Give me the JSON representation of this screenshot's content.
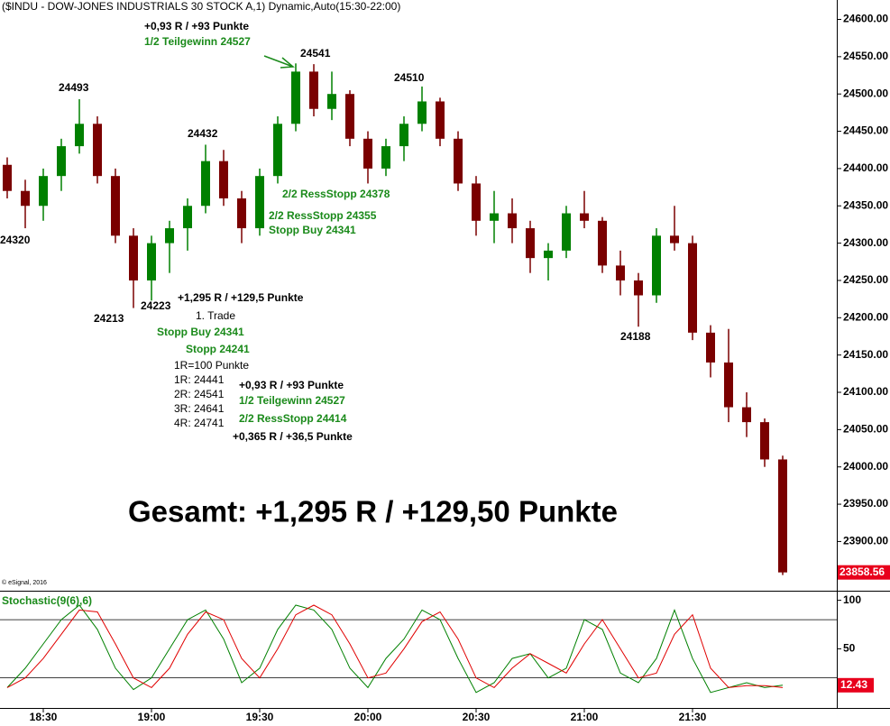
{
  "chart_data": [
    {
      "type": "candlestick",
      "title": "($INDU - DOW-JONES INDUSTRIALS 30 STOCK A,1) Dynamic,Auto(15:30-22:00)",
      "source": "© eSignal, 2016",
      "x": [
        "18:20",
        "18:25",
        "18:30",
        "18:35",
        "18:40",
        "18:45",
        "18:50",
        "18:55",
        "19:00",
        "19:05",
        "19:10",
        "19:15",
        "19:20",
        "19:25",
        "19:30",
        "19:35",
        "19:40",
        "19:45",
        "19:50",
        "19:55",
        "20:00",
        "20:05",
        "20:10",
        "20:15",
        "20:20",
        "20:25",
        "20:30",
        "20:35",
        "20:40",
        "20:45",
        "20:50",
        "20:55",
        "21:00",
        "21:05",
        "21:10",
        "21:15",
        "21:20",
        "21:25",
        "21:30",
        "21:35",
        "21:40",
        "21:45",
        "21:50",
        "21:55"
      ],
      "open": [
        24405,
        24370,
        24350,
        24390,
        24430,
        24460,
        24390,
        24310,
        24250,
        24300,
        24320,
        24350,
        24410,
        24360,
        24320,
        24390,
        24460,
        24530,
        24480,
        24500,
        24440,
        24400,
        24430,
        24460,
        24490,
        24440,
        24380,
        24330,
        24340,
        24320,
        24280,
        24290,
        24340,
        24330,
        24270,
        24250,
        24230,
        24310,
        24300,
        24180,
        24140,
        24080,
        24060,
        24010
      ],
      "high": [
        24415,
        24385,
        24400,
        24440,
        24493,
        24470,
        24400,
        24320,
        24310,
        24330,
        24360,
        24432,
        24425,
        24370,
        24400,
        24470,
        24541,
        24540,
        24530,
        24505,
        24450,
        24440,
        24470,
        24510,
        24495,
        24450,
        24390,
        24370,
        24360,
        24330,
        24300,
        24350,
        24370,
        24335,
        24290,
        24260,
        24320,
        24350,
        24310,
        24190,
        24185,
        24100,
        24065,
        24015
      ],
      "low": [
        24360,
        24320,
        24330,
        24370,
        24420,
        24380,
        24300,
        24213,
        24223,
        24260,
        24290,
        24340,
        24350,
        24300,
        24310,
        24380,
        24450,
        24470,
        24465,
        24430,
        24380,
        24390,
        24410,
        24450,
        24430,
        24370,
        24310,
        24300,
        24300,
        24260,
        24250,
        24280,
        24320,
        24260,
        24230,
        24188,
        24220,
        24290,
        24170,
        24120,
        24060,
        24040,
        24000,
        23855
      ],
      "close": [
        24370,
        24350,
        24390,
        24430,
        24460,
        24390,
        24310,
        24250,
        24300,
        24320,
        24350,
        24410,
        24360,
        24320,
        24390,
        24460,
        24530,
        24480,
        24500,
        24440,
        24400,
        24430,
        24460,
        24490,
        24440,
        24380,
        24330,
        24340,
        24320,
        24280,
        24290,
        24340,
        24330,
        24270,
        24250,
        24230,
        24310,
        24300,
        24180,
        24140,
        24080,
        24060,
        24010,
        23858.56
      ],
      "up_color": "#008000",
      "down_color": "#7a0000",
      "xlim": [
        "18:18",
        "22:10"
      ],
      "ylim": [
        23834,
        24626
      ],
      "yticks": [
        {
          "value": 23900,
          "label": "23900.00"
        },
        {
          "value": 23950,
          "label": "23950.00"
        },
        {
          "value": 24000,
          "label": "24000.00"
        },
        {
          "value": 24050,
          "label": "24050.00"
        },
        {
          "value": 24100,
          "label": "24100.00"
        },
        {
          "value": 24150,
          "label": "24150.00"
        },
        {
          "value": 24200,
          "label": "24200.00"
        },
        {
          "value": 24250,
          "label": "24250.00"
        },
        {
          "value": 24300,
          "label": "24300.00"
        },
        {
          "value": 24350,
          "label": "24350.00"
        },
        {
          "value": 24400,
          "label": "24400.00"
        },
        {
          "value": 24450,
          "label": "24450.00"
        },
        {
          "value": 24500,
          "label": "24500.00"
        },
        {
          "value": 24550,
          "label": "24550.00"
        },
        {
          "value": 24600,
          "label": "24600.00"
        }
      ],
      "last_label_color": "#e8001c",
      "annotations": [
        "+0,93 R / +93 Punkte",
        "1/2 Teilgewinn 24527",
        "24541",
        "24493",
        "24510",
        "24432",
        "24320",
        "24213",
        "24223",
        "2/2 RessStopp 24378",
        "2/2 RessStopp 24355",
        "Stopp Buy 24341",
        "24188",
        "+1,295 R / +129,5 Punkte",
        "1. Trade",
        "Stopp Buy 24341",
        "Stopp 24241",
        "1R=100 Punkte",
        "1R: 24441",
        "2R: 24541",
        "3R: 24641",
        "4R: 24741",
        "+0,93 R / +93 Punkte",
        "1/2 Teilgewinn 24527",
        "2/2 RessStopp 24414",
        "+0,365 R / +36,5 Punkte",
        "Gesamt: +1,295 R / +129,50 Punkte"
      ]
    },
    {
      "type": "line",
      "title": "Stochastic(9(6),6)",
      "x": [
        "18:20",
        "18:25",
        "18:30",
        "18:35",
        "18:40",
        "18:45",
        "18:50",
        "18:55",
        "19:00",
        "19:05",
        "19:10",
        "19:15",
        "19:20",
        "19:25",
        "19:30",
        "19:35",
        "19:40",
        "19:45",
        "19:50",
        "19:55",
        "20:00",
        "20:05",
        "20:10",
        "20:15",
        "20:20",
        "20:25",
        "20:30",
        "20:35",
        "20:40",
        "20:45",
        "20:50",
        "20:55",
        "21:00",
        "21:05",
        "21:10",
        "21:15",
        "21:20",
        "21:25",
        "21:30",
        "21:35",
        "21:40",
        "21:45",
        "21:50",
        "21:55"
      ],
      "series": [
        {
          "color": "#008000",
          "values": [
            10,
            30,
            55,
            80,
            95,
            70,
            30,
            8,
            20,
            50,
            80,
            90,
            60,
            15,
            30,
            70,
            95,
            90,
            70,
            30,
            10,
            40,
            60,
            90,
            80,
            40,
            5,
            15,
            40,
            45,
            20,
            30,
            80,
            70,
            25,
            15,
            40,
            90,
            40,
            5,
            10,
            15,
            10,
            12.43
          ]
        },
        {
          "color": "#e00000",
          "values": [
            10,
            20,
            40,
            65,
            90,
            88,
            55,
            20,
            10,
            30,
            65,
            88,
            80,
            40,
            20,
            50,
            85,
            95,
            85,
            55,
            20,
            25,
            50,
            78,
            88,
            60,
            20,
            10,
            30,
            45,
            35,
            25,
            55,
            80,
            50,
            20,
            25,
            65,
            85,
            30,
            10,
            12,
            12,
            10
          ]
        }
      ],
      "xlim": [
        "18:18",
        "22:10"
      ],
      "xticks": [
        "18:30",
        "19:00",
        "19:30",
        "20:00",
        "20:30",
        "21:00",
        "21:30"
      ],
      "ylim": [
        -11,
        108
      ],
      "yticks": [
        50,
        100
      ],
      "levels": [
        20,
        80
      ],
      "last_label_color": "#e8001c"
    }
  ]
}
